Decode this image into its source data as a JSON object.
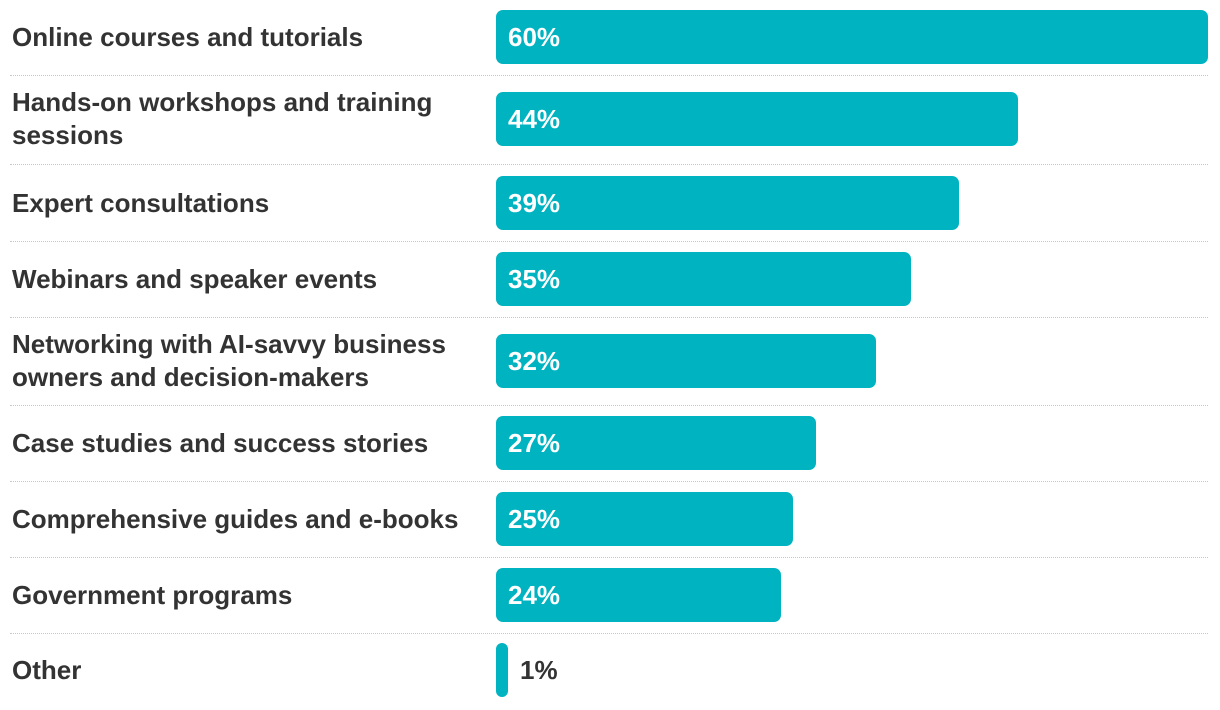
{
  "chart_data": {
    "type": "bar",
    "orientation": "horizontal",
    "categories": [
      "Online courses and tutorials",
      "Hands-on workshops and training sessions",
      "Expert consultations",
      "Webinars and speaker events",
      "Networking with AI-savvy business owners and decision-makers",
      "Case studies and success stories",
      "Comprehensive guides and e-books",
      "Government programs",
      "Other"
    ],
    "values": [
      60,
      44,
      39,
      35,
      32,
      27,
      25,
      24,
      1
    ],
    "value_labels": [
      "60%",
      "44%",
      "39%",
      "35%",
      "32%",
      "27%",
      "25%",
      "24%",
      "1%"
    ],
    "unit": "%",
    "xlim": [
      0,
      60
    ],
    "title": "",
    "xlabel": "",
    "ylabel": "",
    "grid": false,
    "legend": "none"
  },
  "colors": {
    "bar": "#00b3c1",
    "label_text": "#333333",
    "value_inside": "#ffffff",
    "value_outside": "#333333",
    "divider": "#c8c8c8"
  }
}
